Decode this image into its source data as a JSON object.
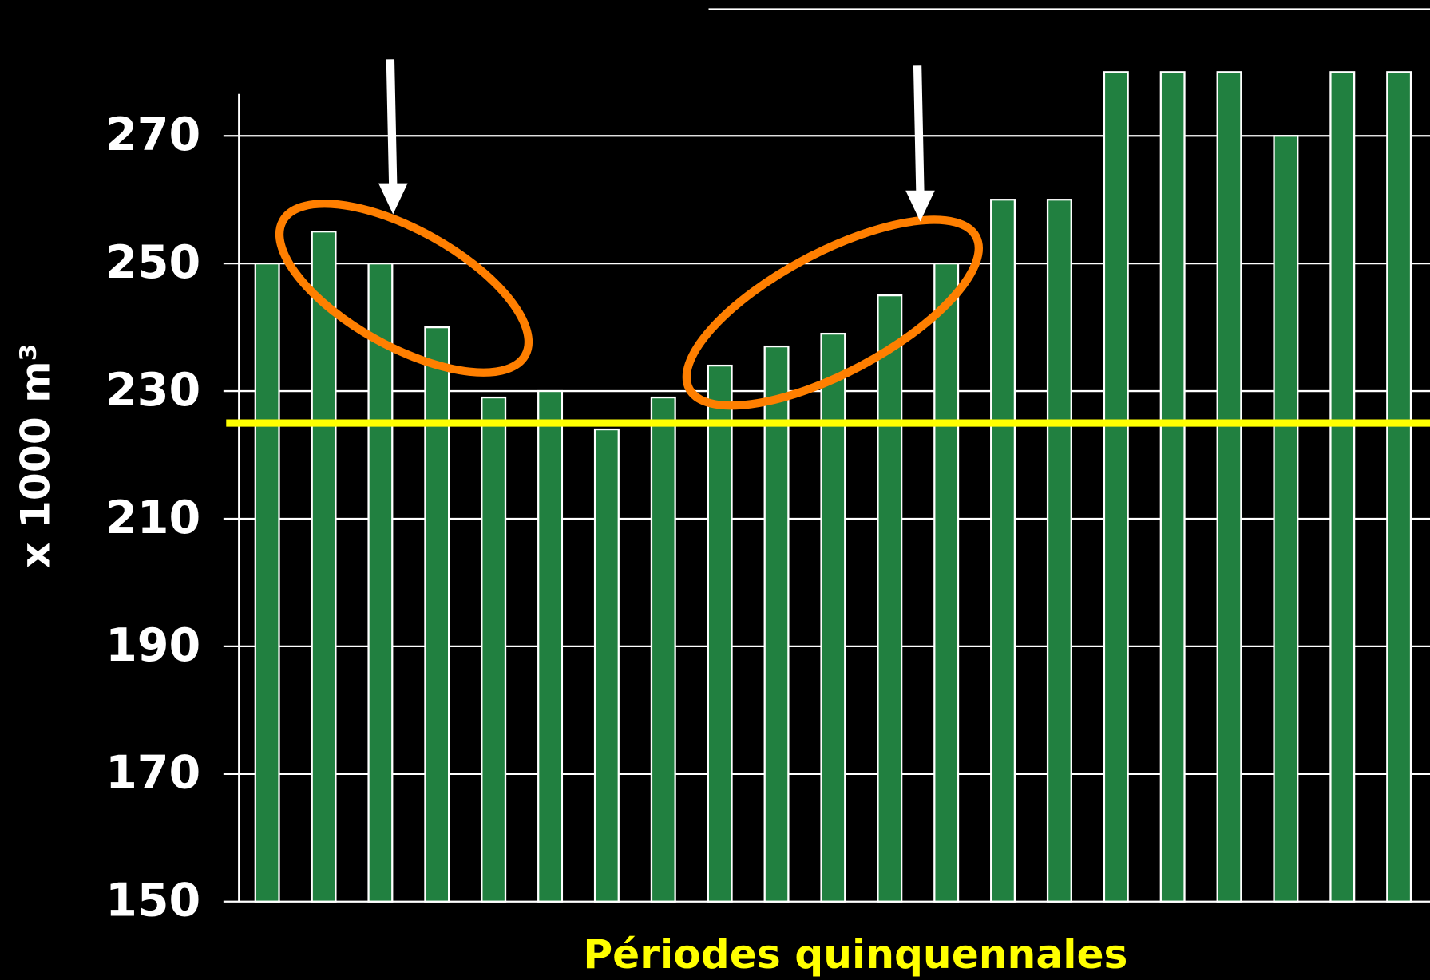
{
  "chart_data": {
    "type": "bar",
    "x_label": "Périodes quinquennales",
    "y_label": "x 1000 m³",
    "values": [
      250,
      255,
      250,
      240,
      229,
      230,
      224,
      229,
      234,
      237,
      239,
      245,
      250,
      260,
      260,
      280,
      280,
      280,
      270,
      280,
      280
    ],
    "color": "#218040",
    "ylim": [
      150,
      277
    ],
    "yticks": [
      150,
      170,
      190,
      210,
      230,
      250,
      270
    ],
    "grid": true,
    "reference_line": {
      "value": 225,
      "color": "#ffff00"
    }
  }
}
